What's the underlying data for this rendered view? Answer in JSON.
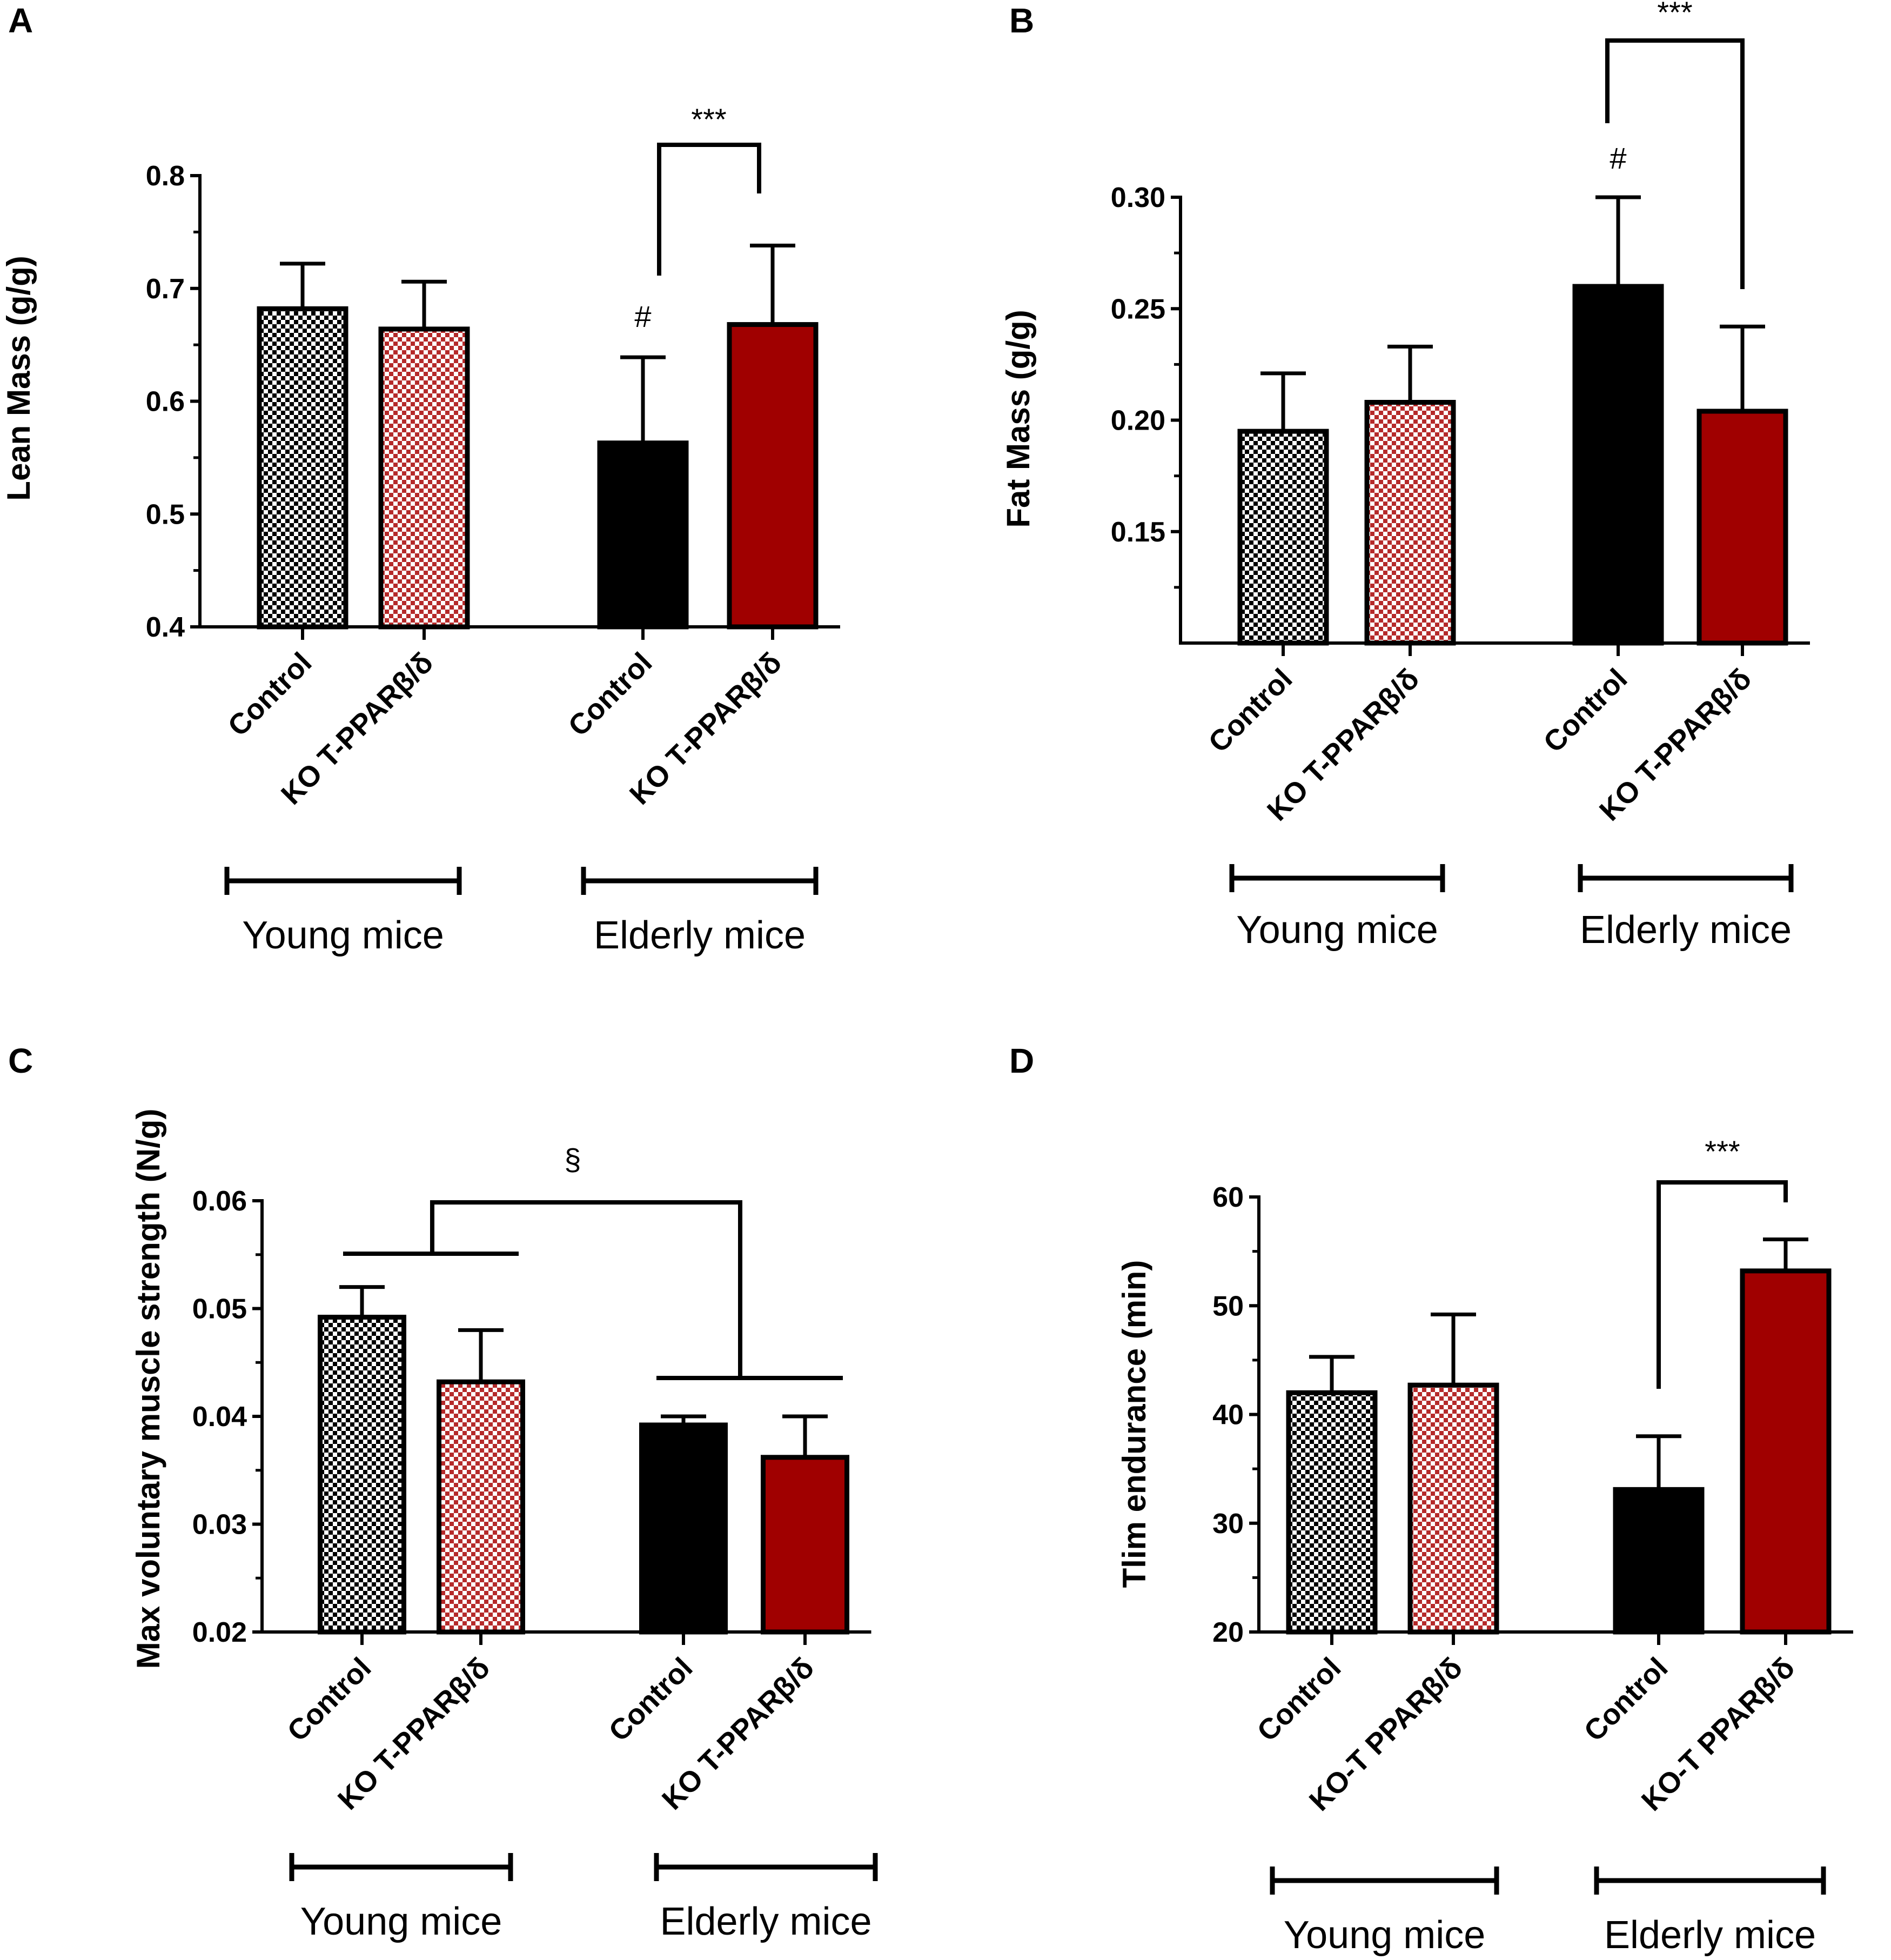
{
  "colors": {
    "black": "#000000",
    "red": "#a00000",
    "checker_black": "#000000",
    "checker_red": "#b52a2a",
    "white": "#ffffff"
  },
  "chart_data": [
    {
      "panel": "A",
      "type": "bar",
      "ylabel": "Lean Mass (g/g)",
      "ylim": [
        0.4,
        0.8
      ],
      "yticks": [
        "0.4",
        "0.5",
        "0.6",
        "0.7",
        "0.8"
      ],
      "categories": [
        "Control",
        "KO T-PPARβ/δ",
        "Control",
        "KO T-PPARβ/δ"
      ],
      "groups": [
        "Young mice",
        "Elderly mice"
      ],
      "values": [
        0.682,
        0.664,
        0.563,
        0.668
      ],
      "errors": [
        0.04,
        0.042,
        0.076,
        0.07
      ],
      "annotations": [
        {
          "text": "#",
          "target": "Elderly mice Control"
        },
        {
          "text": "***",
          "comparison": "Elderly Control vs Elderly KO T-PPARβ/δ"
        }
      ]
    },
    {
      "panel": "B",
      "type": "bar",
      "ylabel": "Fat Mass (g/g)",
      "ylim": [
        0.1,
        0.3
      ],
      "yticks": [
        "0.15",
        "0.20",
        "0.25",
        "0.30"
      ],
      "categories": [
        "Control",
        "KO T-PPARβ/δ",
        "Control",
        "KO T-PPARβ/δ"
      ],
      "groups": [
        "Young mice",
        "Elderly mice"
      ],
      "values": [
        0.195,
        0.208,
        0.26,
        0.204
      ],
      "errors": [
        0.026,
        0.025,
        0.04,
        0.038
      ],
      "annotations": [
        {
          "text": "#",
          "target": "Elderly mice Control"
        },
        {
          "text": "***",
          "comparison": "Elderly Control vs Elderly KO T-PPARβ/δ"
        }
      ]
    },
    {
      "panel": "C",
      "type": "bar",
      "ylabel": "Max voluntary muscle strength (N/g)",
      "ylim": [
        0.02,
        0.06
      ],
      "yticks": [
        "0.02",
        "0.03",
        "0.04",
        "0.05",
        "0.06"
      ],
      "categories": [
        "Control",
        "KO T-PPARβ/δ",
        "Control",
        "KO T-PPARβ/δ"
      ],
      "groups": [
        "Young mice",
        "Elderly mice"
      ],
      "values": [
        0.0492,
        0.0432,
        0.0392,
        0.0362
      ],
      "errors": [
        0.0028,
        0.0048,
        0.0008,
        0.0038
      ],
      "annotations": [
        {
          "text": "§",
          "comparison": "Young mice vs Elderly mice"
        }
      ]
    },
    {
      "panel": "D",
      "type": "bar",
      "ylabel": "Tlim endurance (min)",
      "ylim": [
        20,
        60
      ],
      "yticks": [
        "20",
        "30",
        "40",
        "50",
        "60"
      ],
      "categories": [
        "Control",
        "KO-T PPARβ/δ",
        "Control",
        "KO-T PPARβ/δ"
      ],
      "groups": [
        "Young mice",
        "Elderly mice"
      ],
      "values": [
        42,
        42.7,
        33.1,
        53.2
      ],
      "errors": [
        3.3,
        6.5,
        4.9,
        2.9
      ],
      "annotations": [
        {
          "text": "***",
          "comparison": "Elderly Control vs Elderly KO-T PPARβ/δ"
        }
      ]
    }
  ]
}
